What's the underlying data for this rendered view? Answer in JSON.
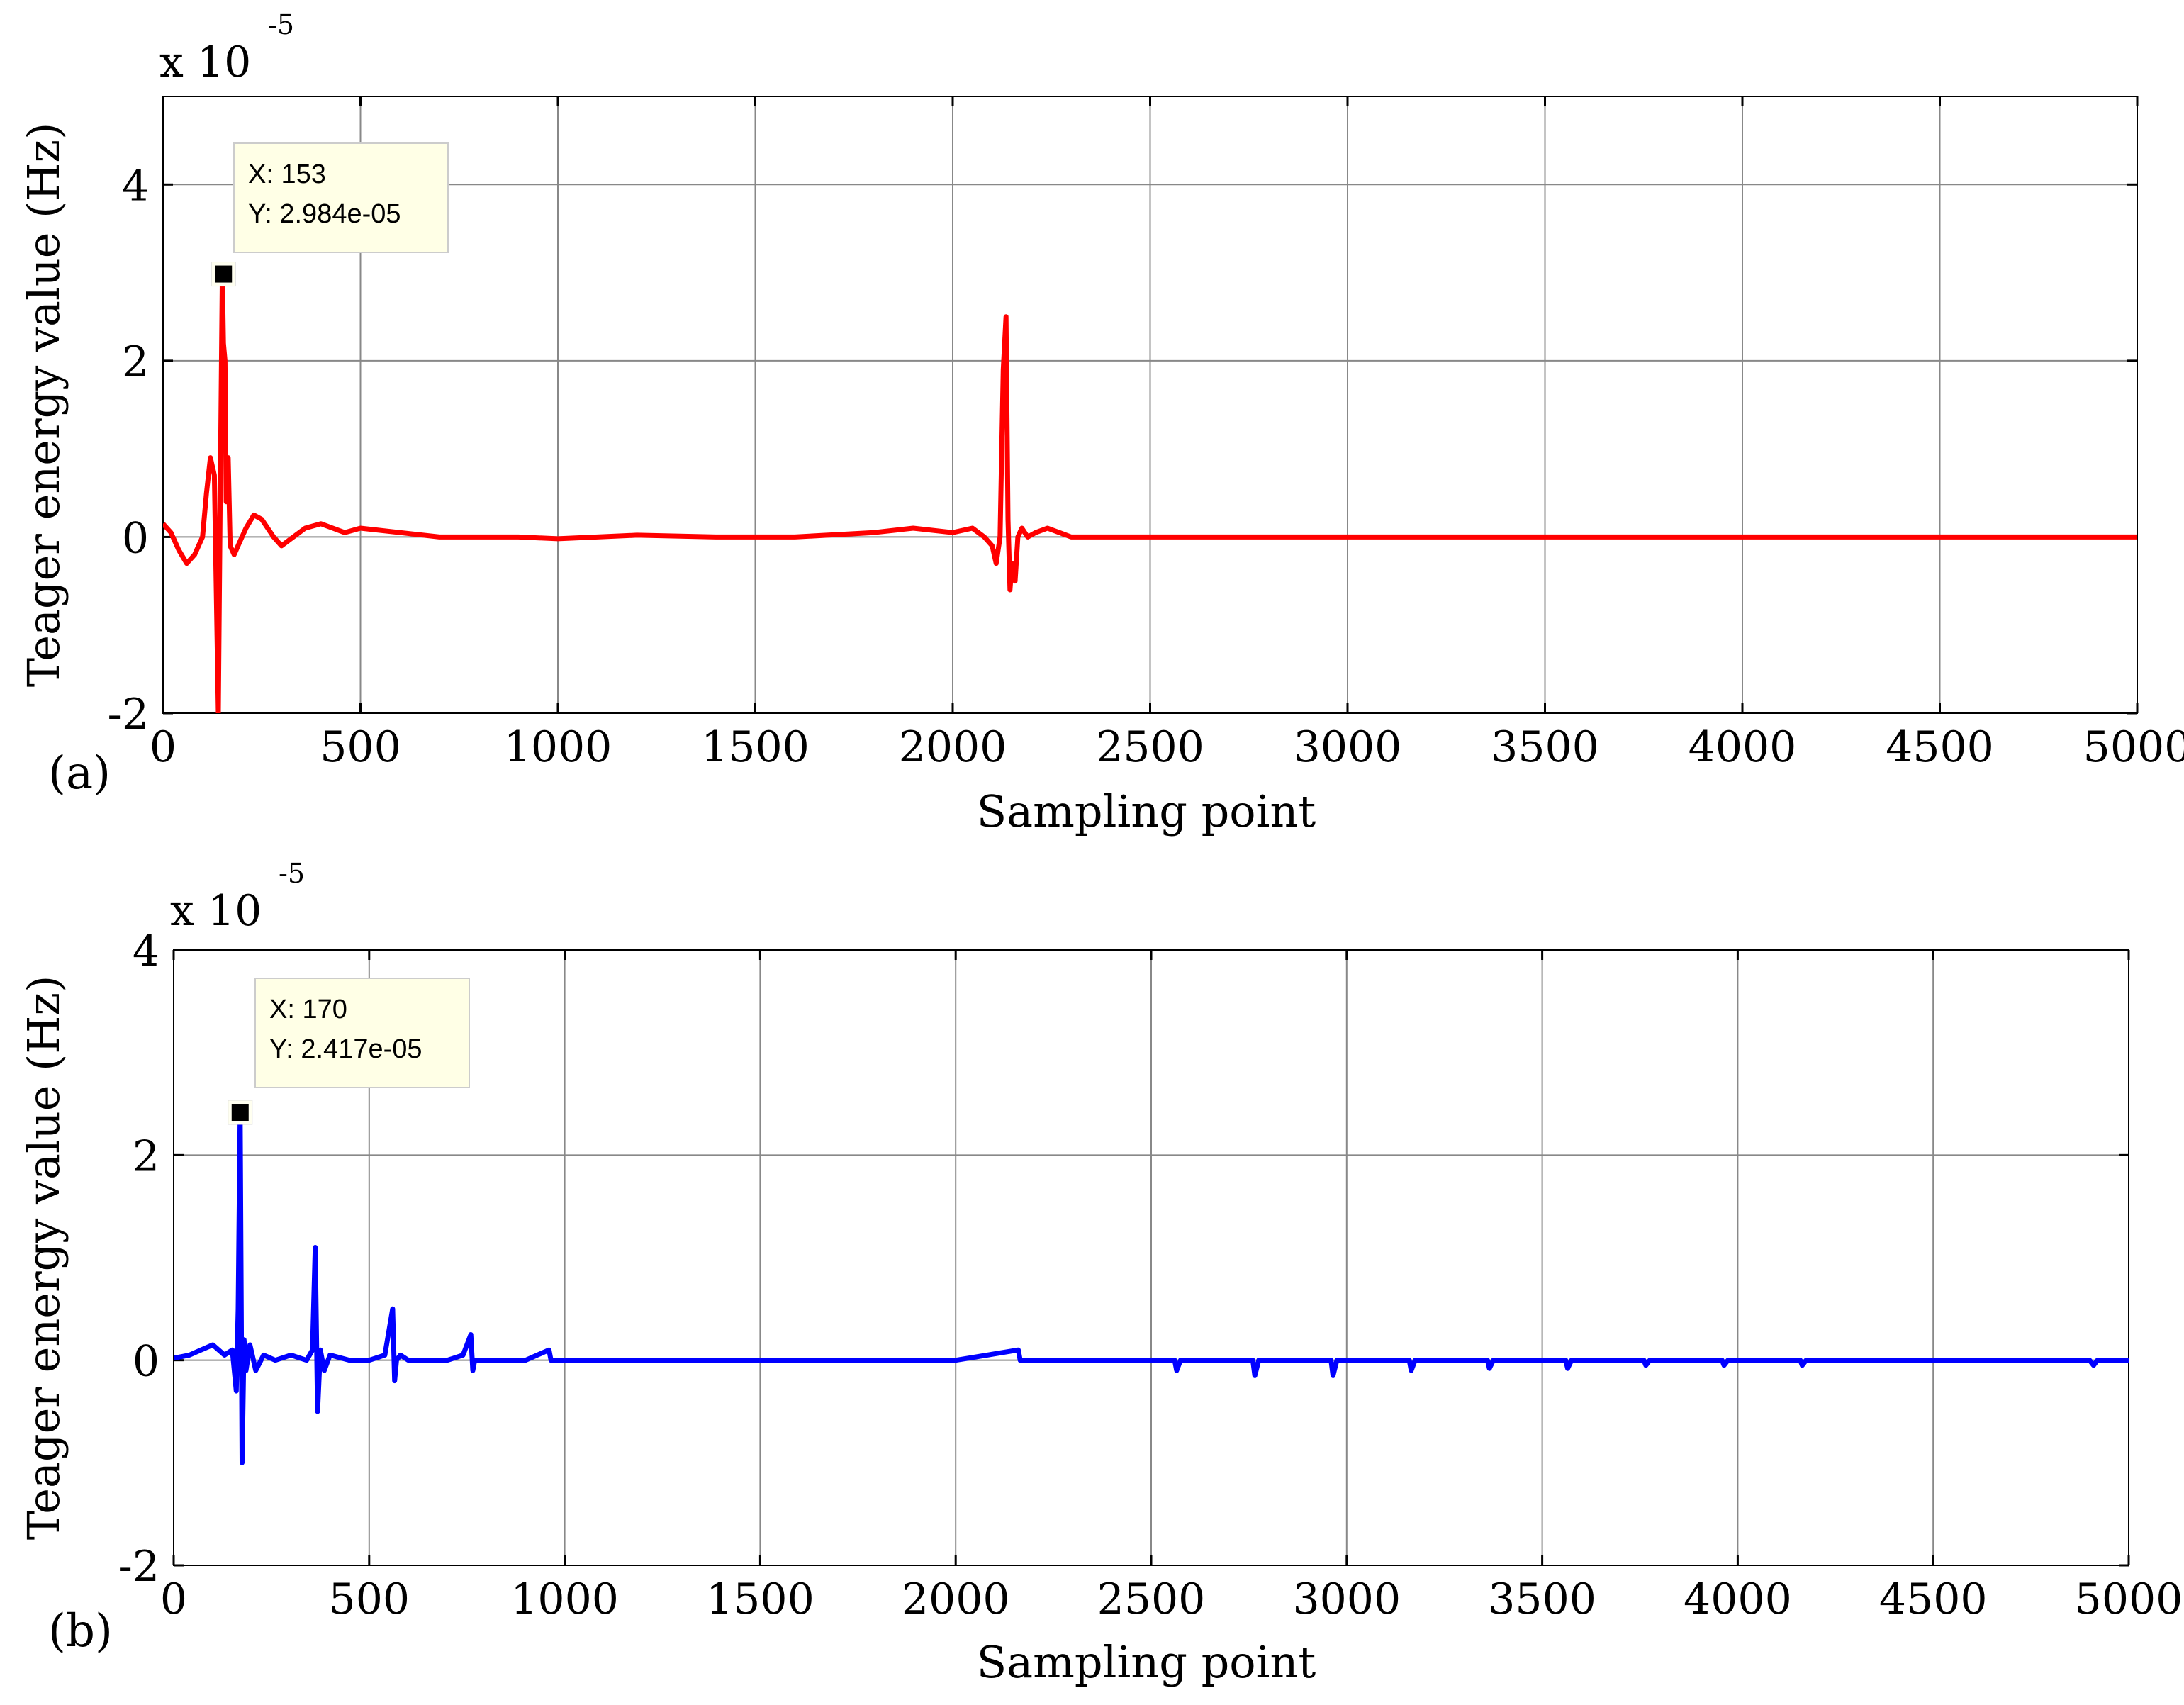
{
  "chart_data": [
    {
      "type": "line",
      "panel_label": "(a)",
      "xlabel": "Sampling point",
      "ylabel": "Teager energy value (Hz)",
      "exponent_label": "x 10",
      "exponent_sup": "-5",
      "xlim": [
        0,
        5000
      ],
      "ylim": [
        -2,
        5
      ],
      "xticks": [
        0,
        500,
        1000,
        1500,
        2000,
        2500,
        3000,
        3500,
        4000,
        4500,
        5000
      ],
      "yticks": [
        -2,
        0,
        2,
        4
      ],
      "grid": true,
      "color": "#ff0000",
      "series": [
        {
          "x": [
            0,
            20,
            40,
            60,
            80,
            100,
            110,
            120,
            130,
            140,
            145,
            150,
            153,
            157,
            160,
            165,
            170,
            180,
            195,
            210,
            230,
            250,
            280,
            300,
            330,
            360,
            400,
            430,
            460,
            500,
            600,
            700,
            800,
            900,
            1000,
            1200,
            1400,
            1600,
            1800,
            1900,
            2000,
            2050,
            2080,
            2100,
            2110,
            2120,
            2128,
            2135,
            2140,
            2145,
            2150,
            2158,
            2165,
            2175,
            2190,
            2210,
            2240,
            2270,
            2300,
            2350,
            2400,
            2500,
            2700,
            3000,
            3500,
            4000,
            4500,
            5000
          ],
          "y": [
            0.15,
            0.05,
            -0.15,
            -0.3,
            -0.2,
            0.0,
            0.5,
            0.9,
            0.7,
            -2.0,
            0.6,
            2.984,
            2.2,
            2.0,
            0.4,
            0.9,
            -0.1,
            -0.2,
            -0.05,
            0.1,
            0.25,
            0.2,
            0.0,
            -0.1,
            0.0,
            0.1,
            0.15,
            0.1,
            0.05,
            0.1,
            0.05,
            0.0,
            0.0,
            0.0,
            -0.02,
            0.02,
            0.0,
            0.0,
            0.05,
            0.1,
            0.05,
            0.1,
            0.0,
            -0.1,
            -0.3,
            0.0,
            1.9,
            2.5,
            0.2,
            -0.6,
            -0.3,
            -0.5,
            0.0,
            0.1,
            0.0,
            0.05,
            0.1,
            0.05,
            0.0,
            0.0,
            0.0,
            0.0,
            0.0,
            0.0,
            0.0,
            0.0,
            0.0,
            0.0
          ]
        }
      ],
      "datatip": {
        "x": 153,
        "y": 2.984,
        "x_text": "X: 153",
        "y_text": "Y: 2.984e-05"
      }
    },
    {
      "type": "line",
      "panel_label": "(b)",
      "xlabel": "Sampling point",
      "ylabel": "Teager energy value (Hz)",
      "exponent_label": "x 10",
      "exponent_sup": "-5",
      "xlim": [
        0,
        5000
      ],
      "ylim": [
        -2,
        4
      ],
      "xticks": [
        0,
        500,
        1000,
        1500,
        2000,
        2500,
        3000,
        3500,
        4000,
        4500,
        5000
      ],
      "yticks": [
        -2,
        0,
        2,
        4
      ],
      "grid": true,
      "color": "#0000ff",
      "series": [
        {
          "x": [
            0,
            40,
            70,
            100,
            130,
            150,
            160,
            165,
            170,
            175,
            180,
            185,
            195,
            210,
            230,
            260,
            300,
            340,
            355,
            362,
            368,
            375,
            385,
            400,
            450,
            500,
            540,
            560,
            565,
            570,
            580,
            600,
            650,
            700,
            740,
            760,
            765,
            770,
            780,
            800,
            900,
            960,
            965,
            975,
            1000,
            1500,
            2000,
            2160,
            2165,
            2175,
            2400,
            2560,
            2565,
            2575,
            2760,
            2765,
            2775,
            2960,
            2965,
            2975,
            3160,
            3165,
            3175,
            3360,
            3365,
            3375,
            3560,
            3565,
            3575,
            3760,
            3765,
            3775,
            3960,
            3965,
            3975,
            4160,
            4165,
            4175,
            4500,
            4900,
            4910,
            4920,
            5000
          ],
          "y": [
            0.02,
            0.05,
            0.1,
            0.15,
            0.05,
            0.1,
            -0.3,
            0.5,
            2.417,
            -1.0,
            0.2,
            -0.1,
            0.15,
            -0.1,
            0.05,
            0.0,
            0.05,
            0.0,
            0.1,
            1.1,
            -0.5,
            0.1,
            -0.1,
            0.05,
            0.0,
            0.0,
            0.05,
            0.5,
            -0.2,
            0.0,
            0.05,
            0.0,
            0.0,
            0.0,
            0.05,
            0.25,
            -0.1,
            0.0,
            0.0,
            0.0,
            0.0,
            0.1,
            0.0,
            0.0,
            0.0,
            0.0,
            0.0,
            0.1,
            0.0,
            0.0,
            0.0,
            0.0,
            -0.1,
            0.0,
            0.0,
            -0.15,
            0.0,
            0.0,
            -0.15,
            0.0,
            0.0,
            -0.1,
            0.0,
            0.0,
            -0.08,
            0.0,
            0.0,
            -0.08,
            0.0,
            0.0,
            -0.05,
            0.0,
            0.0,
            -0.05,
            0.0,
            0.0,
            -0.05,
            0.0,
            0.0,
            0.0,
            -0.05,
            0.0,
            0.0
          ]
        }
      ],
      "datatip": {
        "x": 170,
        "y": 2.417,
        "x_text": "X: 170",
        "y_text": "Y: 2.417e-05"
      }
    }
  ]
}
